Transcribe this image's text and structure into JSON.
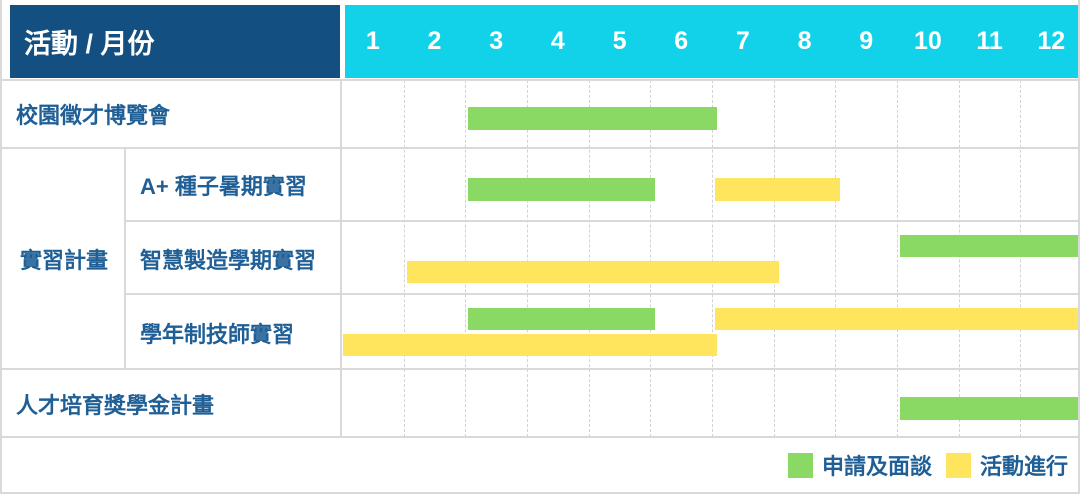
{
  "title": "活動 / 月份",
  "colors": {
    "header_bg": "#134F81",
    "month_bg": "#12D2EA",
    "apply_green": "#8AD964",
    "active_yellow": "#FFE45E",
    "label_text": "#1F5F96",
    "grid_line": "#D9D9D9",
    "grid_dash": "#D2D2D2"
  },
  "legend": {
    "items": [
      {
        "label": "申請及面談",
        "color_key": "apply_green"
      },
      {
        "label": "活動進行",
        "color_key": "active_yellow"
      }
    ]
  },
  "chart_data": {
    "type": "bar",
    "subtype": "gantt",
    "title": "活動 / 月份",
    "x_categories": [
      "1",
      "2",
      "3",
      "4",
      "5",
      "6",
      "7",
      "8",
      "9",
      "10",
      "11",
      "12"
    ],
    "x_range": [
      1,
      12
    ],
    "grid": true,
    "legend_position": "bottom-right",
    "legend": [
      "申請及面談",
      "活動進行"
    ],
    "rows": [
      {
        "group": "",
        "label": "校園徵才博覽會",
        "bars": [
          {
            "phase": "申請及面談",
            "start_month": 3,
            "end_month": 6,
            "lane": "single"
          }
        ]
      },
      {
        "group": "實習計畫",
        "label": "A+ 種子暑期實習",
        "bars": [
          {
            "phase": "申請及面談",
            "start_month": 3,
            "end_month": 5,
            "lane": "single"
          },
          {
            "phase": "活動進行",
            "start_month": 7,
            "end_month": 8,
            "lane": "single"
          }
        ]
      },
      {
        "group": "實習計畫",
        "label": "智慧製造學期實習",
        "bars": [
          {
            "phase": "申請及面談",
            "start_month": 10,
            "end_month": 12,
            "lane": "top"
          },
          {
            "phase": "活動進行",
            "start_month": 2,
            "end_month": 7,
            "lane": "bottom"
          }
        ]
      },
      {
        "group": "實習計畫",
        "label": "學年制技師實習",
        "bars": [
          {
            "phase": "申請及面談",
            "start_month": 3,
            "end_month": 5,
            "lane": "top"
          },
          {
            "phase": "活動進行",
            "start_month": 7,
            "end_month": 12,
            "lane": "top"
          },
          {
            "phase": "活動進行",
            "start_month": 1,
            "end_month": 6,
            "lane": "bottom"
          }
        ]
      },
      {
        "group": "",
        "label": "人才培育獎學金計畫",
        "bars": [
          {
            "phase": "申請及面談",
            "start_month": 10,
            "end_month": 12,
            "lane": "single"
          }
        ]
      }
    ]
  }
}
